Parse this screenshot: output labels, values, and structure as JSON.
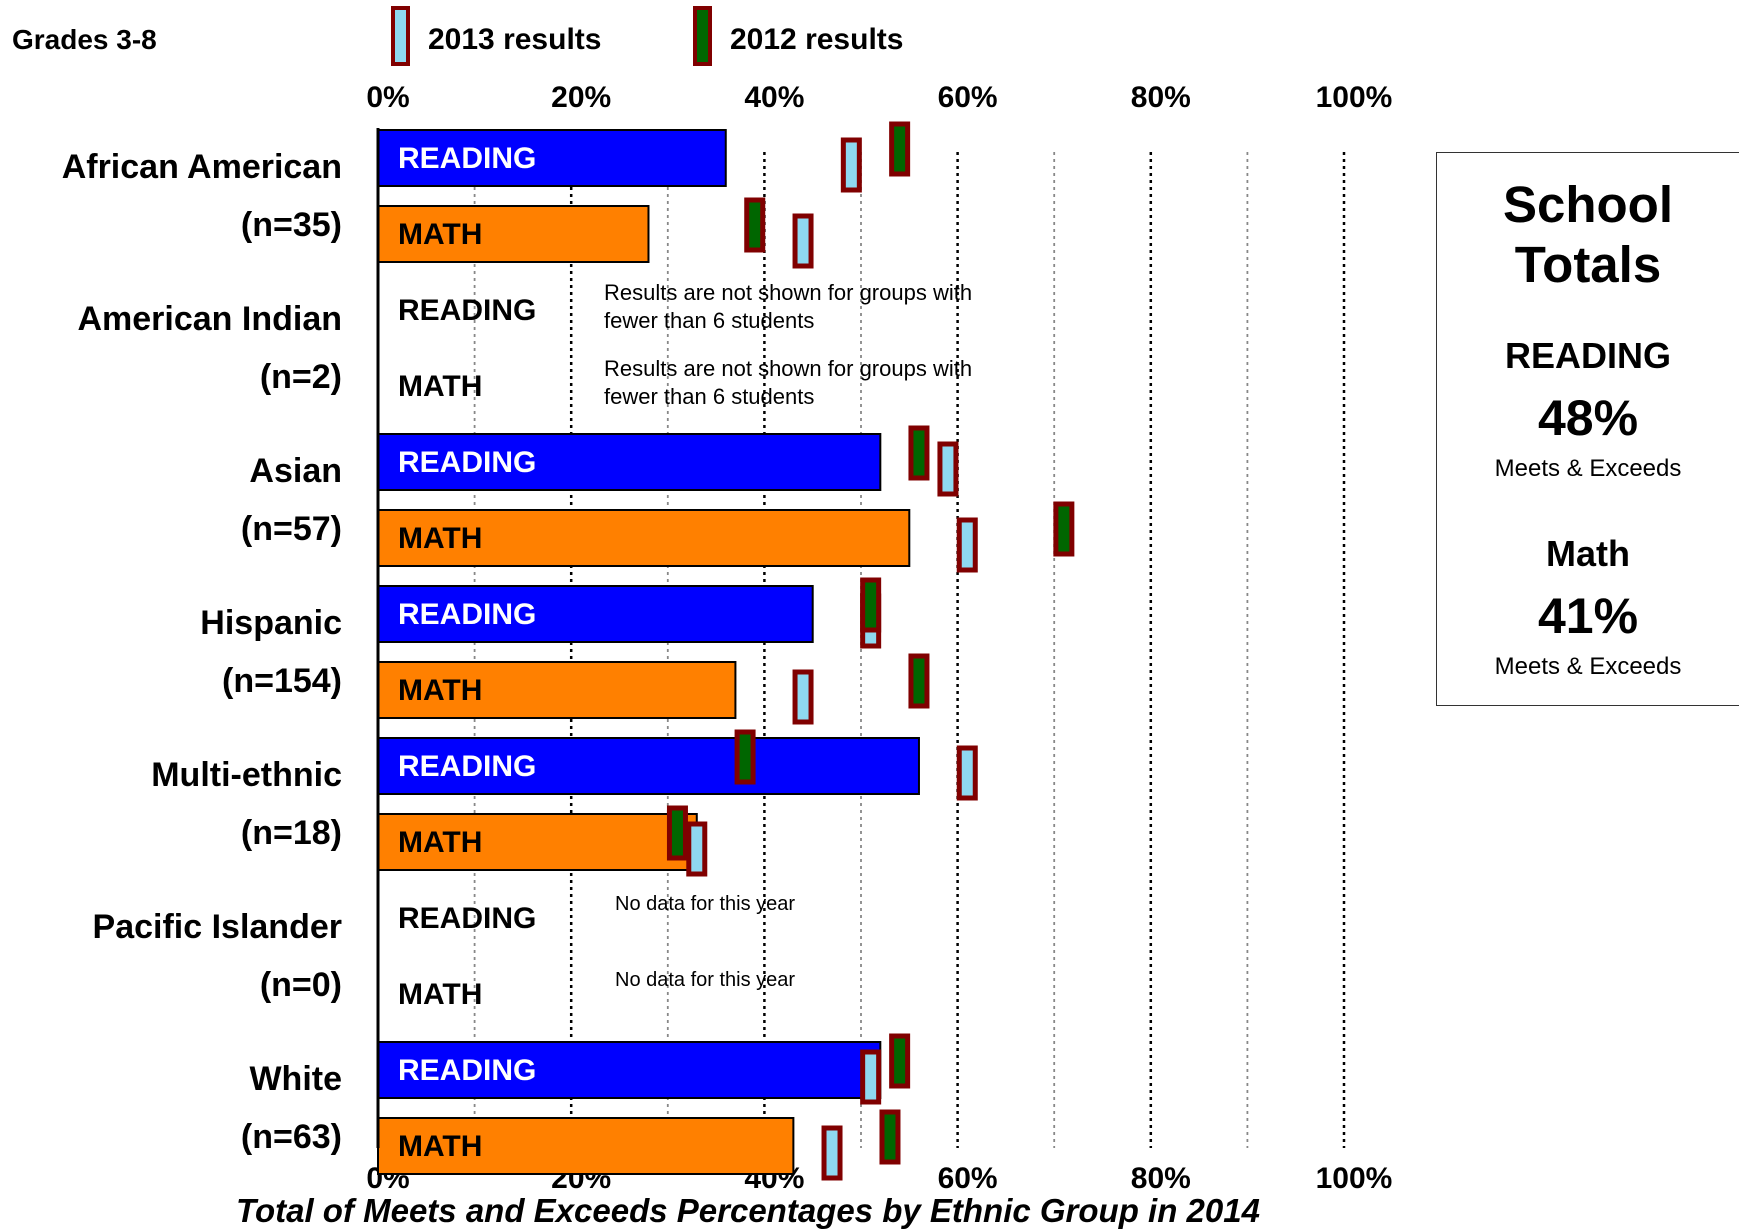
{
  "header": {
    "grade_label": "Grades 3-8",
    "legend": [
      {
        "label": "2013 results",
        "marker": "light-blue-bar",
        "fill": "#8fd8f0"
      },
      {
        "label": "2012 results",
        "marker": "green-bar",
        "fill": "#006600"
      }
    ]
  },
  "school_totals": {
    "title": "School\nTotals",
    "reading_label": "READING",
    "reading_value": "48%",
    "reading_note": "Meets & Exceeds",
    "math_label": "Math",
    "math_value": "41%",
    "math_note": "Meets & Exceeds"
  },
  "chart_data": {
    "type": "bar",
    "orientation": "horizontal",
    "title": "Total of Meets and Exceeds Percentages by Ethnic Group in 2014",
    "xlim": [
      0,
      100
    ],
    "x_ticks": [
      "0%",
      "20%",
      "40%",
      "60%",
      "80%",
      "100%"
    ],
    "grid": "vertical dotted lines every 10%",
    "colors": {
      "reading": "#0000ff",
      "math": "#ff8000",
      "marker_border": "#800000",
      "marker_2013": "#8fd8f0",
      "marker_2012": "#006600"
    },
    "groups": [
      {
        "name": "African American",
        "n": "(n=35)",
        "reading": {
          "label": "READING",
          "value": 36,
          "y2013": 49,
          "y2012": 54
        },
        "math": {
          "label": "MATH",
          "value": 28,
          "y2013": 44,
          "y2012": 39
        }
      },
      {
        "name": "American Indian",
        "n": "(n=2)",
        "reading": {
          "label": "READING",
          "value": null,
          "note": "Results are not shown for groups with fewer than 6 students"
        },
        "math": {
          "label": "MATH",
          "value": null,
          "note": "Results are not shown for groups with fewer than 6 students"
        }
      },
      {
        "name": "Asian",
        "n": "(n=57)",
        "reading": {
          "label": "READING",
          "value": 52,
          "y2013": 59,
          "y2012": 56
        },
        "math": {
          "label": "MATH",
          "value": 55,
          "y2013": 61,
          "y2012": 71
        }
      },
      {
        "name": "Hispanic",
        "n": "(n=154)",
        "reading": {
          "label": "READING",
          "value": 45,
          "y2013": 51,
          "y2012": 51
        },
        "math": {
          "label": "MATH",
          "value": 37,
          "y2013": 44,
          "y2012": 56
        }
      },
      {
        "name": "Multi-ethnic",
        "n": "(n=18)",
        "reading": {
          "label": "READING",
          "value": 56,
          "y2013": 61,
          "y2012": 38
        },
        "math": {
          "label": "MATH",
          "value": 33,
          "y2013": 33,
          "y2012": 31
        }
      },
      {
        "name": "Pacific Islander",
        "n": "(n=0)",
        "reading": {
          "label": "READING",
          "value": null,
          "note": "No data for this year"
        },
        "math": {
          "label": "MATH",
          "value": null,
          "note": "No data for this year"
        }
      },
      {
        "name": "White",
        "n": "(n=63)",
        "reading": {
          "label": "READING",
          "value": 52,
          "y2013": 51,
          "y2012": 54
        },
        "math": {
          "label": "MATH",
          "value": 43,
          "y2013": 47,
          "y2012": 53
        }
      }
    ]
  }
}
